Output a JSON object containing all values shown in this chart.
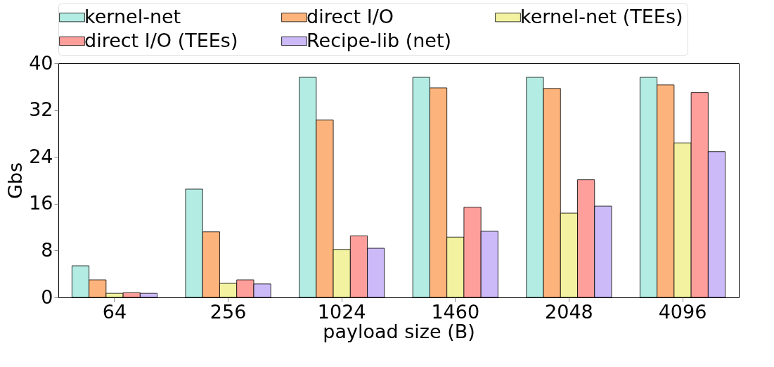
{
  "chart_data": {
    "type": "bar",
    "xlabel": "payload size (B)",
    "ylabel": "Gbs",
    "categories": [
      "64",
      "256",
      "1024",
      "1460",
      "2048",
      "4096"
    ],
    "ylim": [
      0,
      40
    ],
    "yticks": [
      0,
      8,
      16,
      24,
      32,
      40
    ],
    "grid": false,
    "legend": "top",
    "series": [
      {
        "name": "kernel-net",
        "color": "#b3ece3",
        "values": [
          5.4,
          18.5,
          37.6,
          37.6,
          37.6,
          37.6
        ]
      },
      {
        "name": "direct I/O",
        "color": "#fdb47c",
        "values": [
          3.0,
          11.2,
          30.3,
          35.8,
          35.7,
          36.3
        ]
      },
      {
        "name": "kernel-net (TEEs)",
        "color": "#f2f2a0",
        "values": [
          0.7,
          2.4,
          8.2,
          10.3,
          14.4,
          26.4
        ]
      },
      {
        "name": "direct I/O (TEEs)",
        "color": "#ff9f9b",
        "values": [
          0.8,
          3.0,
          10.5,
          15.4,
          20.1,
          35.0
        ]
      },
      {
        "name": "Recipe-lib (net)",
        "color": "#cbb9f8",
        "values": [
          0.7,
          2.3,
          8.4,
          11.3,
          15.6,
          24.9
        ]
      }
    ]
  }
}
